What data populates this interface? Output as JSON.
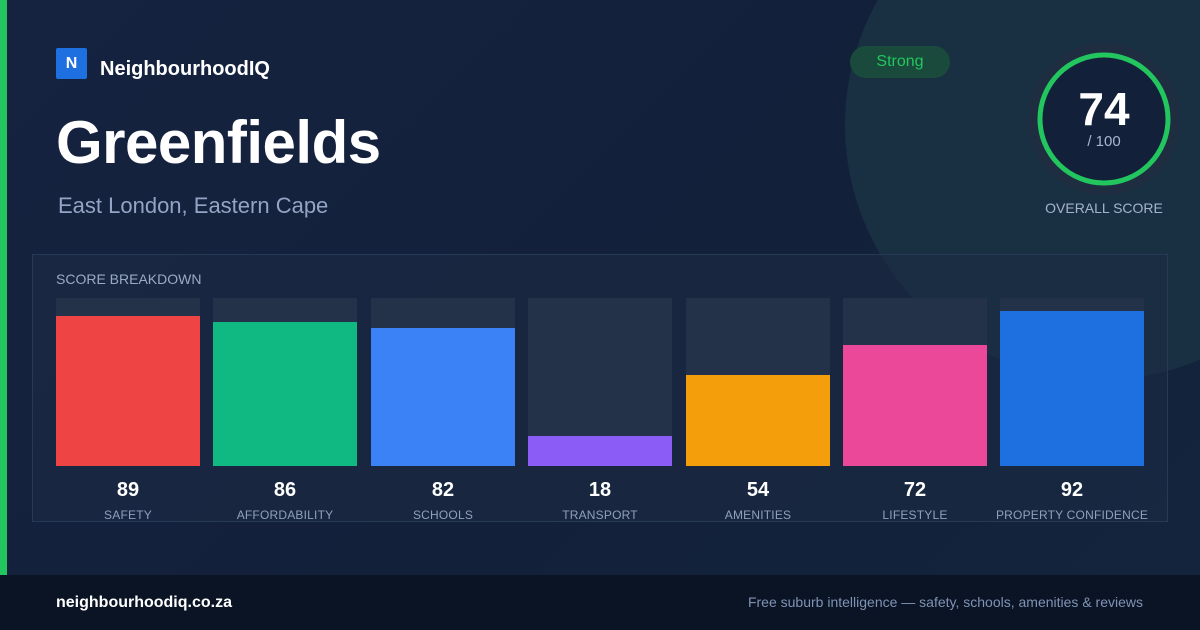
{
  "brand": {
    "logo_letter": "N",
    "name": "NeighbourhoodIQ"
  },
  "suburb": {
    "name": "Greenfields",
    "location": "East London, Eastern Cape"
  },
  "badge": {
    "label": "Strong",
    "color": "#22c55e"
  },
  "overall": {
    "score": "74",
    "max": "/ 100",
    "label": "OVERALL SCORE",
    "fraction": 0.74
  },
  "breakdown": {
    "title": "SCORE BREAKDOWN",
    "items": [
      {
        "label": "SAFETY",
        "value": 89,
        "color": "#ef4444"
      },
      {
        "label": "AFFORDABILITY",
        "value": 86,
        "color": "#10b981"
      },
      {
        "label": "SCHOOLS",
        "value": 82,
        "color": "#3b82f6"
      },
      {
        "label": "TRANSPORT",
        "value": 18,
        "color": "#8b5cf6"
      },
      {
        "label": "AMENITIES",
        "value": 54,
        "color": "#f59e0b"
      },
      {
        "label": "LIFESTYLE",
        "value": 72,
        "color": "#ec4899"
      },
      {
        "label": "PROPERTY CONFIDENCE",
        "value": 92,
        "color": "#1e6fe0"
      }
    ]
  },
  "footer": {
    "url": "neighbourhoodiq.co.za",
    "tagline": "Free suburb intelligence — safety, schools, amenities & reviews"
  },
  "colors": {
    "accent": "#22c55e",
    "background": "#14213a",
    "brand": "#1e6fe0"
  }
}
